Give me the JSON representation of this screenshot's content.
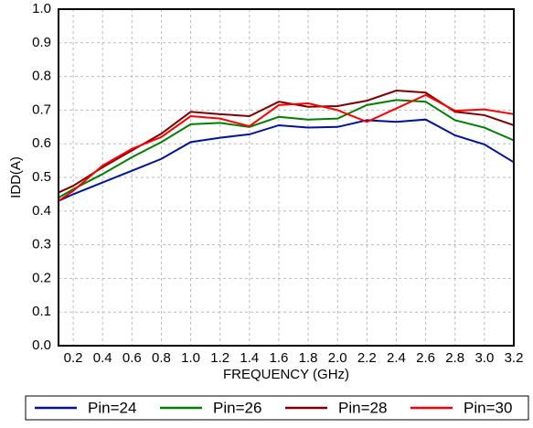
{
  "chart_data": {
    "type": "line",
    "xlabel": "FREQUENCY (GHz)",
    "ylabel": "IDD(A)",
    "x": [
      0.1,
      0.2,
      0.4,
      0.6,
      0.8,
      1.0,
      1.2,
      1.4,
      1.6,
      1.8,
      2.0,
      2.2,
      2.4,
      2.6,
      2.8,
      3.0,
      3.2
    ],
    "series": [
      {
        "name": "Pin=24",
        "color": "#00139a",
        "values": [
          0.43,
          0.45,
          0.485,
          0.52,
          0.555,
          0.605,
          0.618,
          0.628,
          0.655,
          0.648,
          0.65,
          0.67,
          0.665,
          0.672,
          0.625,
          0.598,
          0.545
        ]
      },
      {
        "name": "Pin=26",
        "color": "#008000",
        "values": [
          0.44,
          0.465,
          0.51,
          0.56,
          0.605,
          0.658,
          0.662,
          0.65,
          0.68,
          0.672,
          0.675,
          0.715,
          0.73,
          0.725,
          0.67,
          0.648,
          0.61
        ]
      },
      {
        "name": "Pin=28",
        "color": "#800000",
        "values": [
          0.455,
          0.475,
          0.53,
          0.58,
          0.63,
          0.695,
          0.688,
          0.682,
          0.725,
          0.71,
          0.712,
          0.728,
          0.758,
          0.752,
          0.695,
          0.685,
          0.655
        ]
      },
      {
        "name": "Pin=30",
        "color": "#ff0000",
        "values": [
          0.43,
          0.46,
          0.535,
          0.585,
          0.62,
          0.682,
          0.675,
          0.652,
          0.715,
          0.72,
          0.7,
          0.665,
          0.705,
          0.745,
          0.698,
          0.702,
          0.688
        ]
      }
    ],
    "xlim": [
      0.1,
      3.2
    ],
    "ylim": [
      0,
      1
    ],
    "xticks": [
      0.2,
      0.4,
      0.6,
      0.8,
      {
        "value": 1,
        "label": "1.0"
      },
      1.2,
      1.4,
      1.6,
      1.8,
      {
        "value": 2,
        "label": "2.0"
      },
      2.2,
      2.4,
      2.6,
      2.8,
      {
        "value": 3,
        "label": "3.0"
      },
      3.2
    ],
    "yticks": [
      {
        "value": 0,
        "label": "0.0"
      },
      0.1,
      0.2,
      0.3,
      0.4,
      0.5,
      0.6,
      0.7,
      0.8,
      0.9,
      {
        "value": 1,
        "label": "1.0"
      }
    ],
    "grid": true,
    "legend": "bottom"
  }
}
